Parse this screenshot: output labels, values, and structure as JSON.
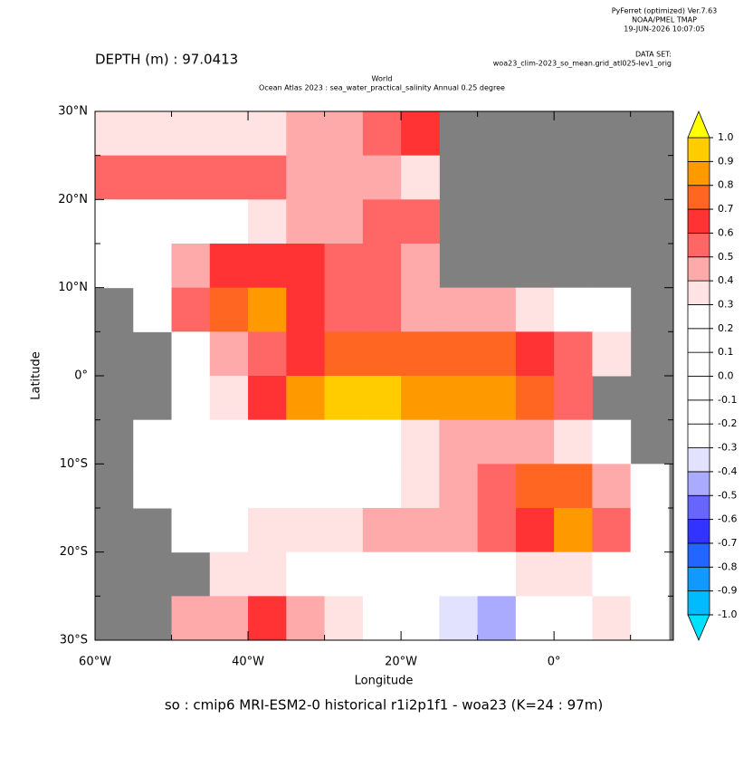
{
  "chart_data": {
    "type": "heatmap",
    "header": [
      "PyFerret (optimized) Ver.7.63",
      "NOAA/PMEL TMAP",
      "19-JUN-2026 10:07:05"
    ],
    "dataset_label": "DATA SET:",
    "dataset": "woa23_clim-2023_so_mean.grid_atl025-lev1_orig",
    "depth_label": "DEPTH (m) : 97.0413",
    "title": "World",
    "subtitle": "Ocean Atlas 2023 : sea_water_practical_salinity Annual  0.25 degree",
    "x_label": "Longitude",
    "y_label": "Latitude",
    "caption": "so : cmip6 MRI-ESM2-0 historical r1i2p1f1 - woa23  (K=24 : 97m)",
    "xlim": [
      -60,
      15.6
    ],
    "ylim": [
      -30,
      30
    ],
    "xticks": [
      {
        "value": -60,
        "label": "60°W"
      },
      {
        "value": -40,
        "label": "40°W"
      },
      {
        "value": -20,
        "label": "20°W"
      },
      {
        "value": 0,
        "label": "0°"
      }
    ],
    "xminorticks": [
      -50,
      -30,
      -10,
      10
    ],
    "yticks": [
      {
        "value": -30,
        "label": "30°S"
      },
      {
        "value": -20,
        "label": "20°S"
      },
      {
        "value": -10,
        "label": "10°S"
      },
      {
        "value": 0,
        "label": "0°"
      },
      {
        "value": 10,
        "label": "10°N"
      },
      {
        "value": 20,
        "label": "20°N"
      },
      {
        "value": 30,
        "label": "30°N"
      }
    ],
    "yminorticks": [
      -25,
      -15,
      -5,
      5,
      15,
      25
    ],
    "land_color": "#808080",
    "lons": [
      -57.5,
      -52.5,
      -47.5,
      -42.5,
      -37.5,
      -32.5,
      -27.5,
      -22.5,
      -17.5,
      -12.5,
      -7.5,
      -2.5,
      2.5,
      7.5,
      12.5
    ],
    "lats": [
      27.5,
      22.5,
      17.5,
      12.5,
      7.5,
      2.5,
      -2.5,
      -7.5,
      -12.5,
      -17.5,
      -22.5,
      -27.5
    ],
    "z": [
      [
        0.35,
        0.35,
        0.35,
        0.35,
        0.35,
        0.45,
        0.45,
        0.55,
        0.65,
        null,
        null,
        null,
        null,
        null,
        null
      ],
      [
        0.55,
        0.55,
        0.55,
        0.55,
        0.5,
        0.45,
        0.45,
        0.45,
        0.35,
        null,
        null,
        null,
        null,
        null,
        null
      ],
      [
        0.15,
        0.15,
        0.15,
        0.25,
        0.35,
        0.45,
        0.45,
        0.55,
        0.55,
        null,
        null,
        null,
        null,
        null,
        null
      ],
      [
        0.15,
        0.25,
        0.45,
        0.65,
        0.65,
        0.65,
        0.55,
        0.55,
        0.45,
        null,
        null,
        null,
        null,
        null,
        null
      ],
      [
        null,
        0.15,
        0.55,
        0.75,
        0.85,
        0.65,
        0.55,
        0.55,
        0.45,
        0.45,
        0.45,
        0.35,
        0.25,
        0.25,
        null
      ],
      [
        null,
        null,
        0.25,
        0.45,
        0.55,
        0.65,
        0.75,
        0.75,
        0.75,
        0.75,
        0.75,
        0.65,
        0.55,
        0.35,
        null
      ],
      [
        null,
        null,
        0.15,
        0.35,
        0.65,
        0.85,
        0.95,
        0.95,
        0.85,
        0.85,
        0.85,
        0.75,
        0.55,
        null,
        null
      ],
      [
        null,
        0.15,
        0.15,
        0.15,
        0.25,
        0.15,
        0.25,
        0.25,
        0.35,
        0.45,
        0.45,
        0.45,
        0.35,
        0.25,
        null
      ],
      [
        null,
        0.15,
        0.15,
        0.15,
        0.25,
        0.25,
        0.25,
        0.25,
        0.35,
        0.45,
        0.55,
        0.75,
        0.75,
        0.45,
        0.25
      ],
      [
        null,
        null,
        0.15,
        0.25,
        0.35,
        0.35,
        0.35,
        0.45,
        0.45,
        0.45,
        0.55,
        0.65,
        0.85,
        0.55,
        0.15
      ],
      [
        null,
        null,
        null,
        0.35,
        0.35,
        0.25,
        0.25,
        0.15,
        0.15,
        0.25,
        0.25,
        0.35,
        0.35,
        0.25,
        0.15
      ],
      [
        null,
        null,
        0.45,
        0.45,
        0.65,
        0.45,
        0.35,
        0.25,
        0.15,
        -0.35,
        -0.45,
        0.25,
        0.25,
        0.35,
        0.15
      ]
    ],
    "levels": [
      {
        "value": -1,
        "label": "-1.0"
      },
      -0.9,
      -0.8,
      -0.7,
      -0.6,
      -0.5,
      -0.4,
      -0.3,
      -0.2,
      -0.1,
      {
        "value": 0,
        "label": "0.0"
      },
      0.1,
      0.2,
      0.3,
      0.4,
      0.5,
      0.6,
      0.7,
      0.8,
      0.9,
      {
        "value": 1,
        "label": "1.0"
      }
    ],
    "colors": [
      "#00e0ff",
      "#00bbff",
      "#1199ff",
      "#2266ff",
      "#3333ff",
      "#6666ff",
      "#aaaaff",
      "#e2e2ff",
      "#ffffff",
      "#ffffff",
      "#ffffff",
      "#ffffff",
      "#ffffff",
      "#ffffff",
      "#ffe2e2",
      "#ffaaaa",
      "#ff6666",
      "#ff3333",
      "#ff6622",
      "#ff9900",
      "#ffcc00",
      "#ffff00"
    ]
  }
}
